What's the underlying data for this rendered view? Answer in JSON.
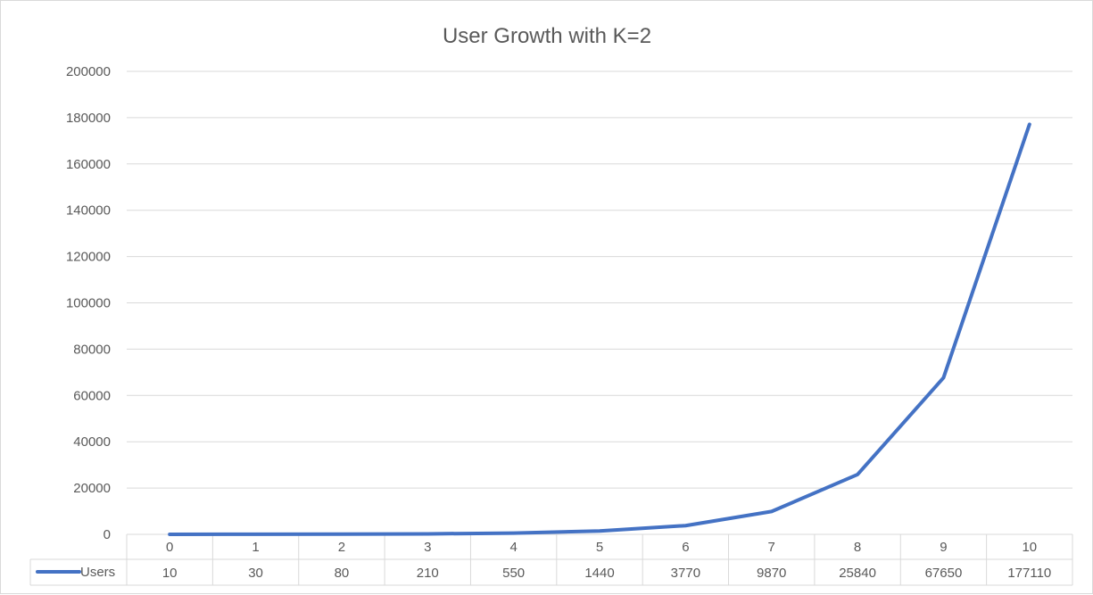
{
  "chart_data": {
    "type": "line",
    "title": "User Growth with K=2",
    "xlabel": "",
    "ylabel": "",
    "categories": [
      "0",
      "1",
      "2",
      "3",
      "4",
      "5",
      "6",
      "7",
      "8",
      "9",
      "10"
    ],
    "series": [
      {
        "name": "Users",
        "values": [
          10,
          30,
          80,
          210,
          550,
          1440,
          3770,
          9870,
          25840,
          67650,
          177110
        ]
      }
    ],
    "ylim": [
      0,
      200000
    ],
    "yticks": [
      "0",
      "20000",
      "40000",
      "60000",
      "80000",
      "100000",
      "120000",
      "140000",
      "160000",
      "180000",
      "200000"
    ],
    "grid": true,
    "data_table": true,
    "colors": {
      "series": "#4472c4",
      "grid": "#d9d9d9",
      "text": "#595959"
    }
  }
}
